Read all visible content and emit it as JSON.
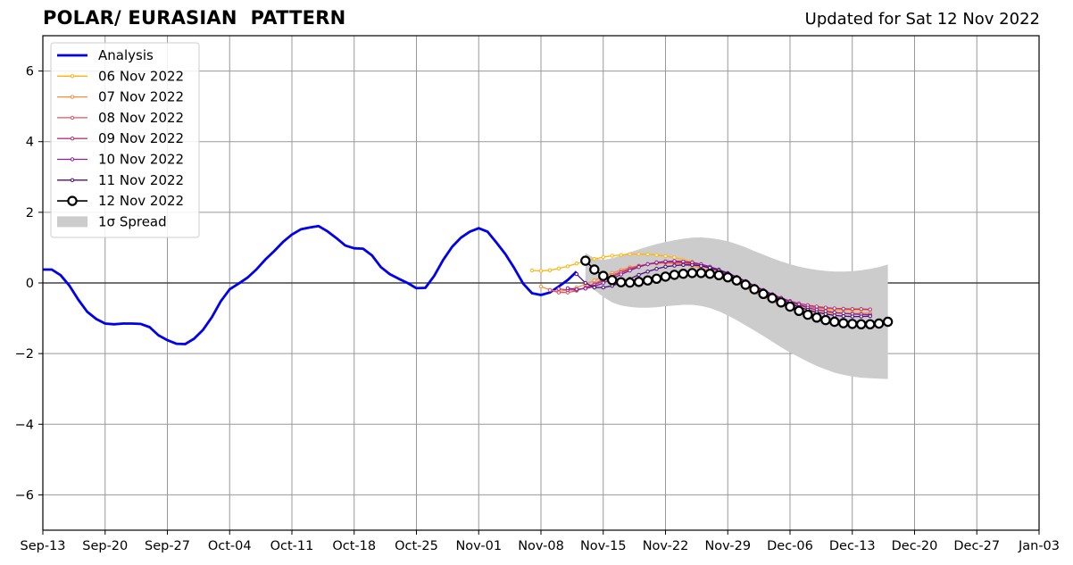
{
  "header": {
    "title": "POLAR/ EURASIAN  PATTERN",
    "updated": "Updated for Sat 12 Nov 2022"
  },
  "colors": {
    "analysis": "#0000ee",
    "spread": "#cccccc",
    "grid": "#999999",
    "forecast_latest": "#000000"
  },
  "chart_data": {
    "type": "line",
    "title": "POLAR/ EURASIAN  PATTERN",
    "xlabel": "",
    "ylabel": "",
    "x_axis": {
      "start": "2022-09-13",
      "end": "2023-01-03",
      "tick_labels": [
        "Sep-13",
        "Sep-20",
        "Sep-27",
        "Oct-04",
        "Oct-11",
        "Oct-18",
        "Oct-25",
        "Nov-01",
        "Nov-08",
        "Nov-15",
        "Nov-22",
        "Nov-29",
        "Dec-06",
        "Dec-13",
        "Dec-20",
        "Dec-27",
        "Jan-03"
      ]
    },
    "y_axis": {
      "range": [
        -7,
        7
      ],
      "ticks": [
        6,
        4,
        2,
        0,
        -2,
        -4,
        -6
      ],
      "tick_labels": [
        "6",
        "4",
        "2",
        "0",
        "−2",
        "−4",
        "−6"
      ]
    },
    "grid": true,
    "legend_position": "top-left",
    "analysis": {
      "name": "Analysis",
      "start": "2022-09-13",
      "values": [
        0.38,
        0.38,
        0.22,
        -0.08,
        -0.48,
        -0.82,
        -1.02,
        -1.15,
        -1.17,
        -1.15,
        -1.15,
        -1.16,
        -1.25,
        -1.48,
        -1.62,
        -1.72,
        -1.73,
        -1.58,
        -1.33,
        -0.97,
        -0.52,
        -0.18,
        -0.02,
        0.15,
        0.38,
        0.66,
        0.9,
        1.16,
        1.37,
        1.52,
        1.57,
        1.61,
        1.46,
        1.27,
        1.06,
        0.98,
        0.97,
        0.78,
        0.45,
        0.25,
        0.12,
        0.0,
        -0.15,
        -0.14,
        0.2,
        0.65,
        1.02,
        1.28,
        1.45,
        1.55,
        1.45,
        1.14,
        0.82,
        0.42,
        -0.02,
        -0.29,
        -0.34,
        -0.27,
        -0.1,
        0.08,
        0.32
      ]
    },
    "forecasts": [
      {
        "name": "06 Nov 2022",
        "color": "#ffb40d",
        "start": "2022-11-07",
        "values": [
          0.35,
          0.34,
          0.36,
          0.41,
          0.47,
          0.55,
          0.62,
          0.68,
          0.73,
          0.77,
          0.79,
          0.81,
          0.82,
          0.81,
          0.79,
          0.76,
          0.72,
          0.66,
          0.6,
          0.52,
          0.43,
          0.32,
          0.2,
          0.08,
          -0.06,
          -0.2,
          -0.33,
          -0.45,
          -0.55,
          -0.63,
          -0.69,
          -0.73,
          -0.75,
          -0.77,
          -0.78,
          -0.78,
          -0.77,
          -0.76,
          -0.75
        ]
      },
      {
        "name": "07 Nov 2022",
        "color": "#f98e3e",
        "start": "2022-11-08",
        "values": [
          -0.1,
          -0.2,
          -0.24,
          -0.2,
          -0.13,
          -0.04,
          0.07,
          0.18,
          0.28,
          0.37,
          0.44,
          0.49,
          0.53,
          0.55,
          0.56,
          0.55,
          0.52,
          0.48,
          0.42,
          0.34,
          0.24,
          0.13,
          0.0,
          -0.13,
          -0.27,
          -0.4,
          -0.52,
          -0.62,
          -0.7,
          -0.76,
          -0.8,
          -0.83,
          -0.85,
          -0.86,
          -0.86,
          -0.86,
          -0.86,
          -0.85
        ]
      },
      {
        "name": "08 Nov 2022",
        "color": "#e25563",
        "start": "2022-11-09",
        "values": [
          -0.2,
          -0.27,
          -0.27,
          -0.22,
          -0.13,
          -0.02,
          0.1,
          0.22,
          0.32,
          0.41,
          0.48,
          0.53,
          0.56,
          0.58,
          0.58,
          0.56,
          0.53,
          0.48,
          0.41,
          0.33,
          0.23,
          0.12,
          -0.01,
          -0.14,
          -0.27,
          -0.38,
          -0.48,
          -0.56,
          -0.62,
          -0.67,
          -0.7,
          -0.72,
          -0.73,
          -0.74,
          -0.74,
          -0.74,
          -0.75
        ]
      },
      {
        "name": "09 Nov 2022",
        "color": "#b73779",
        "start": "2022-11-10",
        "values": [
          -0.17,
          -0.2,
          -0.2,
          -0.14,
          -0.05,
          0.06,
          0.18,
          0.29,
          0.39,
          0.47,
          0.53,
          0.57,
          0.59,
          0.6,
          0.59,
          0.56,
          0.51,
          0.45,
          0.37,
          0.28,
          0.17,
          0.05,
          -0.08,
          -0.2,
          -0.32,
          -0.42,
          -0.51,
          -0.58,
          -0.63,
          -0.67,
          -0.7,
          -0.72,
          -0.73,
          -0.74,
          -0.74,
          -0.75
        ]
      },
      {
        "name": "10 Nov 2022",
        "color": "#8d1f9c",
        "start": "2022-11-11",
        "values": [
          -0.15,
          -0.18,
          -0.16,
          -0.1,
          0.0,
          0.12,
          0.24,
          0.35,
          0.45,
          0.53,
          0.58,
          0.61,
          0.62,
          0.61,
          0.58,
          0.53,
          0.46,
          0.38,
          0.28,
          0.17,
          0.05,
          -0.08,
          -0.2,
          -0.32,
          -0.43,
          -0.53,
          -0.62,
          -0.7,
          -0.76,
          -0.8,
          -0.84,
          -0.86,
          -0.88,
          -0.89,
          -0.9
        ]
      },
      {
        "name": "11 Nov 2022",
        "color": "#4b0d7d",
        "start": "2022-11-12",
        "values": [
          0.25,
          0.0,
          -0.13,
          -0.13,
          -0.08,
          0.01,
          0.12,
          0.23,
          0.32,
          0.4,
          0.46,
          0.49,
          0.51,
          0.51,
          0.48,
          0.43,
          0.36,
          0.27,
          0.16,
          0.04,
          -0.09,
          -0.22,
          -0.35,
          -0.47,
          -0.58,
          -0.68,
          -0.76,
          -0.83,
          -0.88,
          -0.92,
          -0.94,
          -0.95,
          -0.95,
          -0.94
        ]
      },
      {
        "name": "12 Nov 2022",
        "color": "#000000",
        "start": "2022-11-13",
        "values": [
          0.63,
          0.38,
          0.2,
          0.08,
          0.02,
          0.01,
          0.03,
          0.07,
          0.12,
          0.18,
          0.23,
          0.26,
          0.28,
          0.28,
          0.26,
          0.22,
          0.16,
          0.07,
          -0.05,
          -0.18,
          -0.31,
          -0.43,
          -0.55,
          -0.67,
          -0.79,
          -0.9,
          -0.98,
          -1.05,
          -1.1,
          -1.14,
          -1.16,
          -1.17,
          -1.17,
          -1.15,
          -1.1
        ]
      }
    ],
    "spread": {
      "name": "1σ Spread",
      "start": "2022-11-13",
      "upper": [
        0.85,
        0.7,
        0.65,
        0.7,
        0.78,
        0.87,
        0.95,
        1.03,
        1.1,
        1.16,
        1.21,
        1.25,
        1.28,
        1.29,
        1.27,
        1.23,
        1.18,
        1.1,
        1.01,
        0.9,
        0.8,
        0.7,
        0.61,
        0.53,
        0.46,
        0.41,
        0.37,
        0.34,
        0.32,
        0.32,
        0.33,
        0.36,
        0.4,
        0.45,
        0.52
      ],
      "lower": [
        0.0,
        -0.2,
        -0.4,
        -0.55,
        -0.64,
        -0.68,
        -0.7,
        -0.7,
        -0.69,
        -0.66,
        -0.64,
        -0.62,
        -0.62,
        -0.65,
        -0.71,
        -0.8,
        -0.92,
        -1.05,
        -1.2,
        -1.35,
        -1.5,
        -1.66,
        -1.82,
        -1.97,
        -2.1,
        -2.23,
        -2.35,
        -2.45,
        -2.54,
        -2.6,
        -2.65,
        -2.68,
        -2.7,
        -2.71,
        -2.72
      ]
    }
  }
}
